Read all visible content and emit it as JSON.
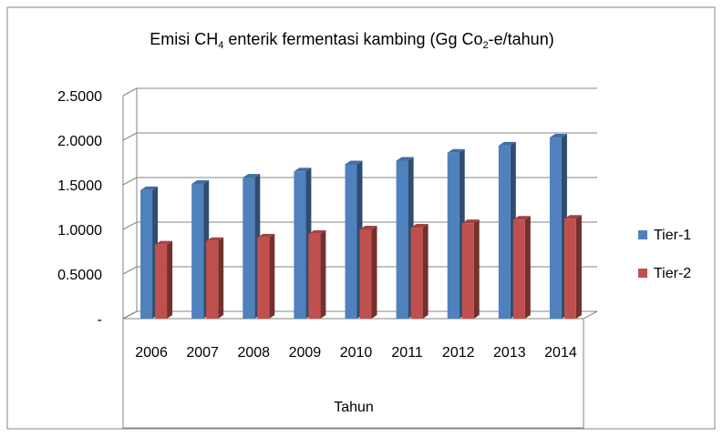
{
  "chart_data": {
    "type": "bar3d",
    "title": "Emisi CH4 enterik fermentasi kambing (Gg Co2-e/tahun)",
    "x_label": "Tahun",
    "categories": [
      "2006",
      "2007",
      "2008",
      "2009",
      "2010",
      "2011",
      "2012",
      "2013",
      "2014"
    ],
    "series": [
      {
        "name": "Tier-1",
        "color": "#4f81bd",
        "values": [
          1.44,
          1.51,
          1.58,
          1.65,
          1.73,
          1.77,
          1.86,
          1.94,
          2.03
        ]
      },
      {
        "name": "Tier-2",
        "color": "#c0504d",
        "values": [
          0.83,
          0.87,
          0.91,
          0.95,
          1.0,
          1.02,
          1.07,
          1.11,
          1.12
        ]
      }
    ],
    "ylim": [
      0,
      2.5
    ],
    "yticks": [
      {
        "value": 0,
        "label": "-"
      },
      {
        "value": 0.5,
        "label": "0.5000"
      },
      {
        "value": 1,
        "label": "1.0000"
      },
      {
        "value": 1.5,
        "label": "1.5000"
      },
      {
        "value": 2,
        "label": "2.0000"
      },
      {
        "value": 2.5,
        "label": "2.5000"
      }
    ],
    "grid": true,
    "legend": "right"
  }
}
